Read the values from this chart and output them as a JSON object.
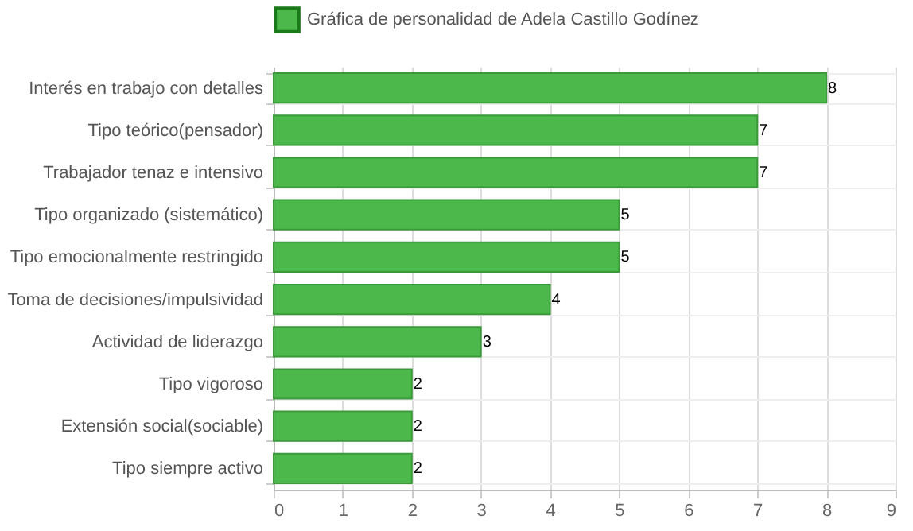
{
  "chart_data": {
    "type": "bar",
    "orientation": "horizontal",
    "categories": [
      "Interés en trabajo con detalles",
      "Tipo teórico(pensador)",
      "Trabajador tenaz e intensivo",
      "Tipo organizado (sistemático)",
      "Tipo emocionalmente restringido",
      "Toma de decisiones/impulsividad",
      "Actividad de liderazgo",
      "Tipo vigoroso",
      "Extensión social(sociable)",
      "Tipo siempre activo"
    ],
    "series": [
      {
        "name": "Gráfica de personalidad de Adela Castillo Godínez",
        "color": "#4cb84c",
        "values": [
          8,
          7,
          7,
          5,
          5,
          4,
          3,
          2,
          2,
          2
        ]
      }
    ],
    "xlim": [
      0,
      9
    ],
    "xticks": [
      0,
      1,
      2,
      3,
      4,
      5,
      6,
      7,
      8,
      9
    ],
    "grid": true,
    "legend": "top",
    "data_labels": true
  }
}
